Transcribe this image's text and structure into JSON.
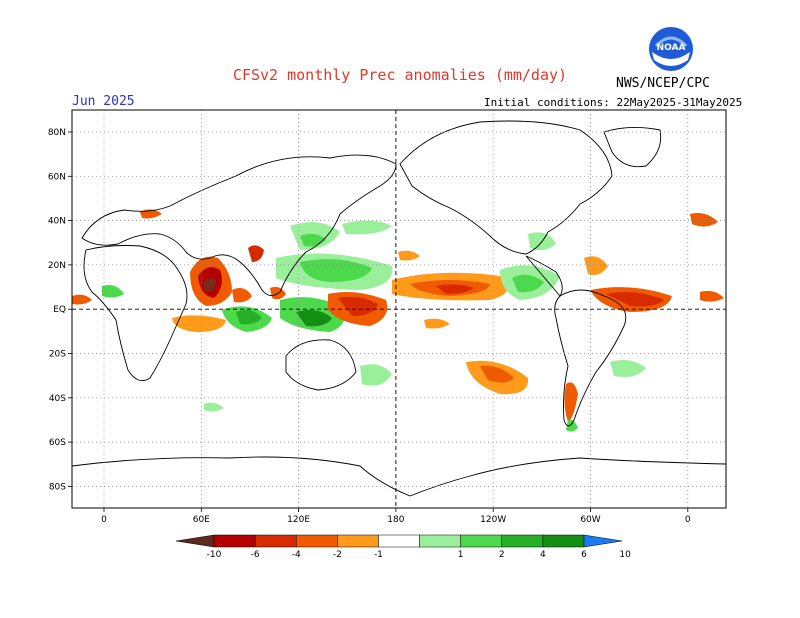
{
  "header": {
    "title": "CFSv2 monthly Prec anomalies (mm/day)",
    "agency": "NWS/NCEP/CPC",
    "month": "Jun 2025",
    "initial_conditions": "Initial conditions: 22May2025-31May2025",
    "logo_text": "NOAA"
  },
  "map": {
    "projection": "equirectangular",
    "lat_ticks": [
      "80N",
      "60N",
      "40N",
      "20N",
      "EQ",
      "20S",
      "40S",
      "60S",
      "80S"
    ],
    "lon_ticks": [
      "0",
      "60E",
      "120E",
      "180",
      "120W",
      "60W",
      "0"
    ],
    "dateline_dashed": true,
    "equator_dashed": true,
    "grid": "dotted"
  },
  "legend": {
    "labels": [
      "-10",
      "-6",
      "-4",
      "-2",
      "-1",
      "1",
      "2",
      "4",
      "6",
      "10"
    ],
    "colors": [
      "#5b2a1c",
      "#b40000",
      "#d82a00",
      "#f05a00",
      "#ff9a1a",
      "#ffffff",
      "#9af09a",
      "#4cd94c",
      "#27b027",
      "#148f14",
      "#1c7af0"
    ]
  },
  "colors": {
    "dry_strong": "#b40000",
    "dry_mid": "#f05a00",
    "dry_light": "#ff9a1a",
    "wet_light": "#9af09a",
    "wet_mid": "#4cd94c",
    "wet_strong": "#148f14"
  }
}
